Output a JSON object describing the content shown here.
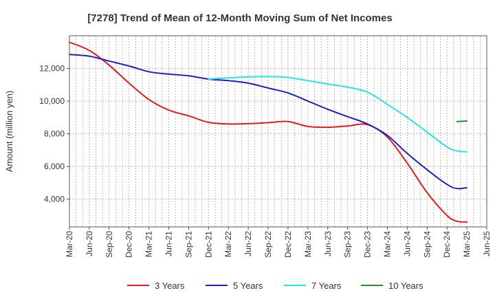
{
  "chart_data": {
    "type": "line",
    "title": "[7278]  Trend of Mean of 12-Month Moving Sum of Net Incomes",
    "xlabel": "",
    "ylabel": "Amount (million yen)",
    "ylim": [
      2300,
      14000
    ],
    "yticks": [
      4000,
      6000,
      8000,
      10000,
      12000
    ],
    "ytick_labels": [
      "4,000",
      "6,000",
      "8,000",
      "10,000",
      "12,000"
    ],
    "x_tick_labels": [
      "Mar-20",
      "Jun-20",
      "Sep-20",
      "Dec-20",
      "Mar-21",
      "Jun-21",
      "Sep-21",
      "Dec-21",
      "Mar-22",
      "Jun-22",
      "Sep-22",
      "Dec-22",
      "Mar-23",
      "Jun-23",
      "Sep-23",
      "Dec-23",
      "Mar-24",
      "Jun-24",
      "Sep-24",
      "Dec-24",
      "Mar-25",
      "Jun-25"
    ],
    "grid": true,
    "legend_position": "bottom",
    "series": [
      {
        "name": "3 Years",
        "color": "#e41a1c",
        "points": [
          [
            0,
            13600
          ],
          [
            1,
            13100
          ],
          [
            2,
            12200
          ],
          [
            3,
            11100
          ],
          [
            4,
            10100
          ],
          [
            5,
            9450
          ],
          [
            6,
            9100
          ],
          [
            7,
            8700
          ],
          [
            8,
            8600
          ],
          [
            9,
            8620
          ],
          [
            10,
            8680
          ],
          [
            11,
            8750
          ],
          [
            12,
            8450
          ],
          [
            13,
            8400
          ],
          [
            14,
            8480
          ],
          [
            15,
            8560
          ],
          [
            16,
            7800
          ],
          [
            17,
            6200
          ],
          [
            18,
            4400
          ],
          [
            19,
            3000
          ],
          [
            19.5,
            2650
          ],
          [
            20,
            2600
          ]
        ]
      },
      {
        "name": "5 Years",
        "color": "#1f1fbf",
        "points": [
          [
            0,
            12850
          ],
          [
            1,
            12750
          ],
          [
            2,
            12450
          ],
          [
            3,
            12150
          ],
          [
            4,
            11800
          ],
          [
            5,
            11650
          ],
          [
            6,
            11550
          ],
          [
            7,
            11350
          ],
          [
            8,
            11250
          ],
          [
            9,
            11100
          ],
          [
            10,
            10800
          ],
          [
            11,
            10500
          ],
          [
            12,
            10000
          ],
          [
            13,
            9500
          ],
          [
            14,
            9050
          ],
          [
            15,
            8600
          ],
          [
            16,
            7900
          ],
          [
            17,
            6800
          ],
          [
            18,
            5800
          ],
          [
            19,
            4900
          ],
          [
            19.5,
            4650
          ],
          [
            20,
            4700
          ]
        ]
      },
      {
        "name": "7 Years",
        "color": "#22e6e6",
        "points": [
          [
            7,
            11350
          ],
          [
            8,
            11420
          ],
          [
            9,
            11480
          ],
          [
            10,
            11500
          ],
          [
            11,
            11450
          ],
          [
            12,
            11250
          ],
          [
            13,
            11050
          ],
          [
            14,
            10850
          ],
          [
            15,
            10550
          ],
          [
            16,
            9800
          ],
          [
            17,
            9000
          ],
          [
            18,
            8100
          ],
          [
            19,
            7200
          ],
          [
            19.5,
            6950
          ],
          [
            20,
            6900
          ]
        ]
      },
      {
        "name": "10 Years",
        "color": "#2e8b2e",
        "points": [
          [
            19.5,
            8750
          ],
          [
            20,
            8780
          ]
        ]
      }
    ]
  }
}
